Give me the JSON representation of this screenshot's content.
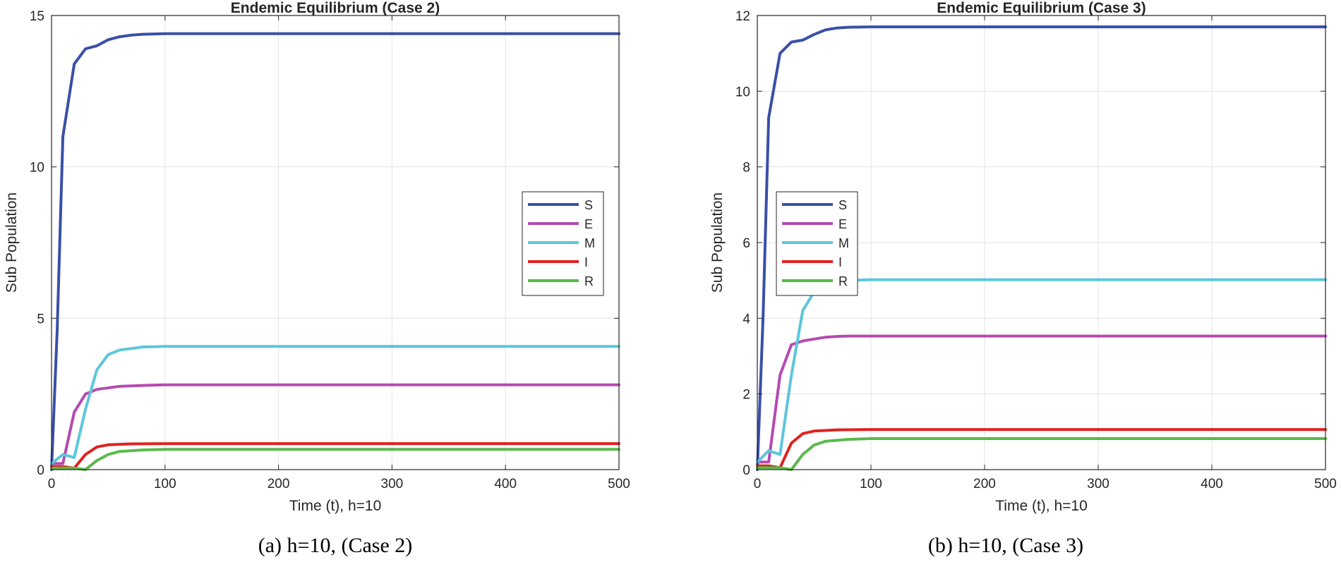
{
  "chart_data": [
    {
      "type": "line",
      "title": "Endemic Equilibrium (Case 2)",
      "xlabel": "Time (t), h=10",
      "ylabel": "Sub Population",
      "caption": "(a) h=10, (Case 2)",
      "xlim": [
        0,
        500
      ],
      "ylim": [
        0,
        15
      ],
      "xticks": [
        0,
        100,
        200,
        300,
        400,
        500
      ],
      "yticks": [
        0,
        5,
        10,
        15
      ],
      "grid": true,
      "legend_position": "middle-right",
      "series": [
        {
          "name": "S",
          "color": "#3a4fa8",
          "x": [
            0,
            5,
            10,
            20,
            30,
            40,
            50,
            60,
            70,
            80,
            100,
            500
          ],
          "y": [
            0,
            4.6,
            11.0,
            13.4,
            13.9,
            14.0,
            14.2,
            14.3,
            14.35,
            14.38,
            14.4,
            14.4
          ]
        },
        {
          "name": "E",
          "color": "#b54ab0",
          "x": [
            0,
            10,
            20,
            30,
            40,
            60,
            80,
            100,
            500
          ],
          "y": [
            0.2,
            0.2,
            1.9,
            2.5,
            2.65,
            2.75,
            2.78,
            2.8,
            2.8
          ]
        },
        {
          "name": "M",
          "color": "#5cc6dc",
          "x": [
            0,
            10,
            20,
            30,
            40,
            50,
            60,
            70,
            80,
            100,
            500
          ],
          "y": [
            0.2,
            0.5,
            0.4,
            2.0,
            3.3,
            3.8,
            3.95,
            4.0,
            4.05,
            4.07,
            4.07
          ]
        },
        {
          "name": "I",
          "color": "#e0221f",
          "x": [
            0,
            10,
            20,
            30,
            40,
            50,
            70,
            100,
            500
          ],
          "y": [
            0.1,
            0.1,
            0.05,
            0.5,
            0.75,
            0.82,
            0.85,
            0.86,
            0.86
          ]
        },
        {
          "name": "R",
          "color": "#5ab84a",
          "x": [
            0,
            10,
            20,
            30,
            40,
            50,
            60,
            80,
            100,
            500
          ],
          "y": [
            0.05,
            0.05,
            0.05,
            0.0,
            0.3,
            0.5,
            0.6,
            0.65,
            0.67,
            0.67
          ]
        }
      ]
    },
    {
      "type": "line",
      "title": "Endemic Equilibrium (Case 3)",
      "xlabel": "Time (t), h=10",
      "ylabel": "Sub Population",
      "caption": "(b) h=10, (Case 3)",
      "xlim": [
        0,
        500
      ],
      "ylim": [
        0,
        12
      ],
      "xticks": [
        0,
        100,
        200,
        300,
        400,
        500
      ],
      "yticks": [
        0,
        2,
        4,
        6,
        8,
        10,
        12
      ],
      "grid": true,
      "legend_position": "middle-left",
      "series": [
        {
          "name": "S",
          "color": "#3a4fa8",
          "x": [
            0,
            5,
            10,
            20,
            30,
            40,
            50,
            60,
            70,
            80,
            100,
            500
          ],
          "y": [
            0,
            4.0,
            9.3,
            11.0,
            11.3,
            11.35,
            11.5,
            11.62,
            11.67,
            11.69,
            11.7,
            11.7
          ]
        },
        {
          "name": "E",
          "color": "#b54ab0",
          "x": [
            0,
            10,
            20,
            30,
            40,
            50,
            60,
            70,
            80,
            100,
            500
          ],
          "y": [
            0.2,
            0.2,
            2.5,
            3.3,
            3.4,
            3.45,
            3.5,
            3.52,
            3.53,
            3.53,
            3.53
          ]
        },
        {
          "name": "M",
          "color": "#5cc6dc",
          "x": [
            0,
            10,
            20,
            30,
            40,
            50,
            60,
            70,
            80,
            100,
            500
          ],
          "y": [
            0.2,
            0.5,
            0.4,
            2.5,
            4.2,
            4.7,
            4.9,
            4.97,
            5.0,
            5.02,
            5.02
          ]
        },
        {
          "name": "I",
          "color": "#e0221f",
          "x": [
            0,
            10,
            20,
            30,
            40,
            50,
            70,
            100,
            500
          ],
          "y": [
            0.1,
            0.1,
            0.05,
            0.7,
            0.95,
            1.02,
            1.05,
            1.06,
            1.06
          ]
        },
        {
          "name": "R",
          "color": "#5ab84a",
          "x": [
            0,
            10,
            20,
            30,
            40,
            50,
            60,
            80,
            100,
            500
          ],
          "y": [
            0.05,
            0.05,
            0.05,
            0.0,
            0.4,
            0.65,
            0.75,
            0.8,
            0.82,
            0.82
          ]
        }
      ]
    }
  ]
}
